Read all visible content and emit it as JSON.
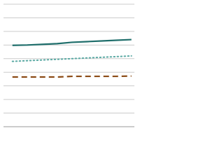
{
  "chart_data": {
    "type": "line",
    "x": [
      0,
      1,
      2,
      3,
      4,
      5,
      6,
      7,
      8
    ],
    "series": [
      {
        "color": "#1f6e6b",
        "dash": "solid",
        "values": [
          5.98,
          6.0,
          6.05,
          6.1,
          6.2,
          6.25,
          6.3,
          6.35,
          6.4
        ]
      },
      {
        "color": "#5aa9a3",
        "dash": "dotted",
        "values": [
          4.8,
          4.85,
          4.9,
          4.95,
          5.0,
          5.05,
          5.1,
          5.15,
          5.2
        ]
      },
      {
        "color": "#8b4a14",
        "dash": "dashed",
        "values": [
          3.65,
          3.65,
          3.65,
          3.65,
          3.7,
          3.7,
          3.7,
          3.7,
          3.72
        ]
      }
    ],
    "xlim": [
      -0.6,
      8.2
    ],
    "ylim": [
      0,
      9
    ],
    "yticks": [
      0,
      1,
      2,
      3,
      4,
      5,
      6,
      7,
      8,
      9
    ],
    "grid": true
  }
}
